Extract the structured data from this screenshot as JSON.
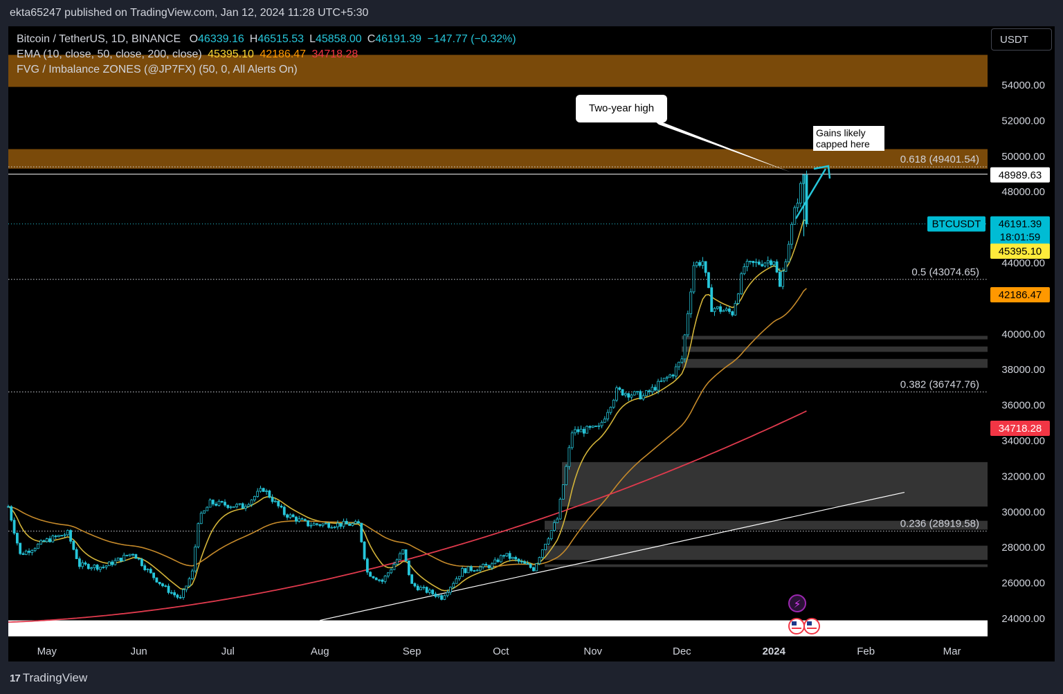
{
  "header": {
    "publisher": "ekta65247 published on TradingView.com, Jan 12, 2024 11:28 UTC+5:30"
  },
  "legend": {
    "symbol": "Bitcoin / TetherUS, 1D, BINANCE",
    "ohlc": [
      {
        "k": "O",
        "v": "46339.16"
      },
      {
        "k": "H",
        "v": "46515.53"
      },
      {
        "k": "L",
        "v": "45858.00"
      },
      {
        "k": "C",
        "v": "46191.39"
      }
    ],
    "change": "−147.77 (−0.32%)",
    "ema_label": "EMA (10, close, 50, close, 200, close)",
    "ema_values": [
      "45395.10",
      "42186.47",
      "34718.28"
    ],
    "fvg_label": "FVG / Imbalance ZONES (@JP7FX) (50, 0, All Alerts On)"
  },
  "currency": "USDT",
  "footer": {
    "logo_text": "TradingView",
    "logo_mark": "17"
  },
  "annotations": {
    "two_year_high": "Two-year high",
    "gains_capped": [
      "Gains likely",
      "capped here"
    ]
  },
  "colors": {
    "up": "#26c6da",
    "down": "#26c6da",
    "ema10": "#d4b53a",
    "ema50": "#c68a2a",
    "ema200": "#e03a4d",
    "fvg_orange": "#7a4a0a",
    "fvg_gray": "#3a3a3a",
    "price_badge": "#00bcd4"
  },
  "chart_data": {
    "type": "line",
    "symbol": "BTCUSDT",
    "x_labels": [
      "May",
      "Jun",
      "Jul",
      "Aug",
      "Sep",
      "Oct",
      "Nov",
      "Dec",
      "2024",
      "Feb",
      "Mar"
    ],
    "x_label_dates": [
      "2023-05-01",
      "2023-06-01",
      "2023-07-01",
      "2023-08-01",
      "2023-09-01",
      "2023-10-01",
      "2023-11-01",
      "2023-12-01",
      "2024-01-01",
      "2024-02-01",
      "2024-03-01"
    ],
    "ylim": [
      23000,
      56000
    ],
    "y_ticks": [
      24000,
      26000,
      28000,
      30000,
      32000,
      34000,
      36000,
      38000,
      40000,
      42000,
      44000,
      46000,
      48000,
      50000,
      52000,
      54000
    ],
    "x_range": [
      "2023-04-18",
      "2024-03-13"
    ],
    "price_keypoints": [
      [
        "2023-04-18",
        30300
      ],
      [
        "2023-04-22",
        27600
      ],
      [
        "2023-05-01",
        28400
      ],
      [
        "2023-05-08",
        28800
      ],
      [
        "2023-05-12",
        27000
      ],
      [
        "2023-05-20",
        26900
      ],
      [
        "2023-05-30",
        27700
      ],
      [
        "2023-06-05",
        26500
      ],
      [
        "2023-06-10",
        25700
      ],
      [
        "2023-06-15",
        25100
      ],
      [
        "2023-06-19",
        26600
      ],
      [
        "2023-06-21",
        29500
      ],
      [
        "2023-06-25",
        30500
      ],
      [
        "2023-07-06",
        30300
      ],
      [
        "2023-07-13",
        31300
      ],
      [
        "2023-07-20",
        29900
      ],
      [
        "2023-07-28",
        29300
      ],
      [
        "2023-08-08",
        29300
      ],
      [
        "2023-08-14",
        29300
      ],
      [
        "2023-08-17",
        26600
      ],
      [
        "2023-08-22",
        26100
      ],
      [
        "2023-08-29",
        27800
      ],
      [
        "2023-09-01",
        25900
      ],
      [
        "2023-09-11",
        25200
      ],
      [
        "2023-09-18",
        26700
      ],
      [
        "2023-09-28",
        27000
      ],
      [
        "2023-10-02",
        27600
      ],
      [
        "2023-10-12",
        26800
      ],
      [
        "2023-10-16",
        28300
      ],
      [
        "2023-10-20",
        29600
      ],
      [
        "2023-10-23",
        32500
      ],
      [
        "2023-10-25",
        34500
      ],
      [
        "2023-11-03",
        34700
      ],
      [
        "2023-11-09",
        36800
      ],
      [
        "2023-11-18",
        36500
      ],
      [
        "2023-11-28",
        37800
      ],
      [
        "2023-12-01",
        38600
      ],
      [
        "2023-12-05",
        43900
      ],
      [
        "2023-12-08",
        44100
      ],
      [
        "2023-12-11",
        41500
      ],
      [
        "2023-12-18",
        41200
      ],
      [
        "2023-12-22",
        43800
      ],
      [
        "2024-01-01",
        44200
      ],
      [
        "2024-01-03",
        42600
      ],
      [
        "2024-01-08",
        46900
      ],
      [
        "2024-01-11",
        48970
      ],
      [
        "2024-01-12",
        46191
      ]
    ],
    "current_price": "46191.39",
    "countdown": "18:01:59",
    "period_high": "48989.63",
    "ema_badges": [
      {
        "name": "EMA 10",
        "value": "45395.10"
      },
      {
        "name": "EMA 50",
        "value": "42186.47"
      },
      {
        "name": "EMA 200",
        "value": "34718.28"
      }
    ],
    "fib_levels": [
      {
        "label": "0.618 (49401.54)",
        "value": 49401.54
      },
      {
        "label": "0.5 (43074.65)",
        "value": 43074.65
      },
      {
        "label": "0.382 (36747.76)",
        "value": 36747.76
      },
      {
        "label": "0.236 (28919.58)",
        "value": 28919.58
      }
    ],
    "fvg_zones": [
      {
        "low": 53900,
        "high": 55700,
        "color": "orange"
      },
      {
        "low": 49300,
        "high": 50400,
        "color": "orange"
      },
      {
        "low": 39700,
        "high": 39900,
        "color": "gray"
      },
      {
        "low": 39000,
        "high": 39300,
        "color": "gray"
      },
      {
        "low": 38100,
        "high": 38600,
        "color": "gray"
      },
      {
        "low": 30300,
        "high": 32800,
        "color": "gray"
      },
      {
        "low": 29000,
        "high": 29500,
        "color": "gray"
      },
      {
        "low": 27300,
        "high": 28100,
        "color": "gray"
      },
      {
        "low": 26900,
        "high": 27050,
        "color": "gray"
      },
      {
        "low": 23000,
        "high": 23900,
        "color": "white"
      }
    ],
    "trendline": [
      [
        "2023-08-01",
        23900
      ],
      [
        "2024-02-14",
        31100
      ]
    ]
  }
}
